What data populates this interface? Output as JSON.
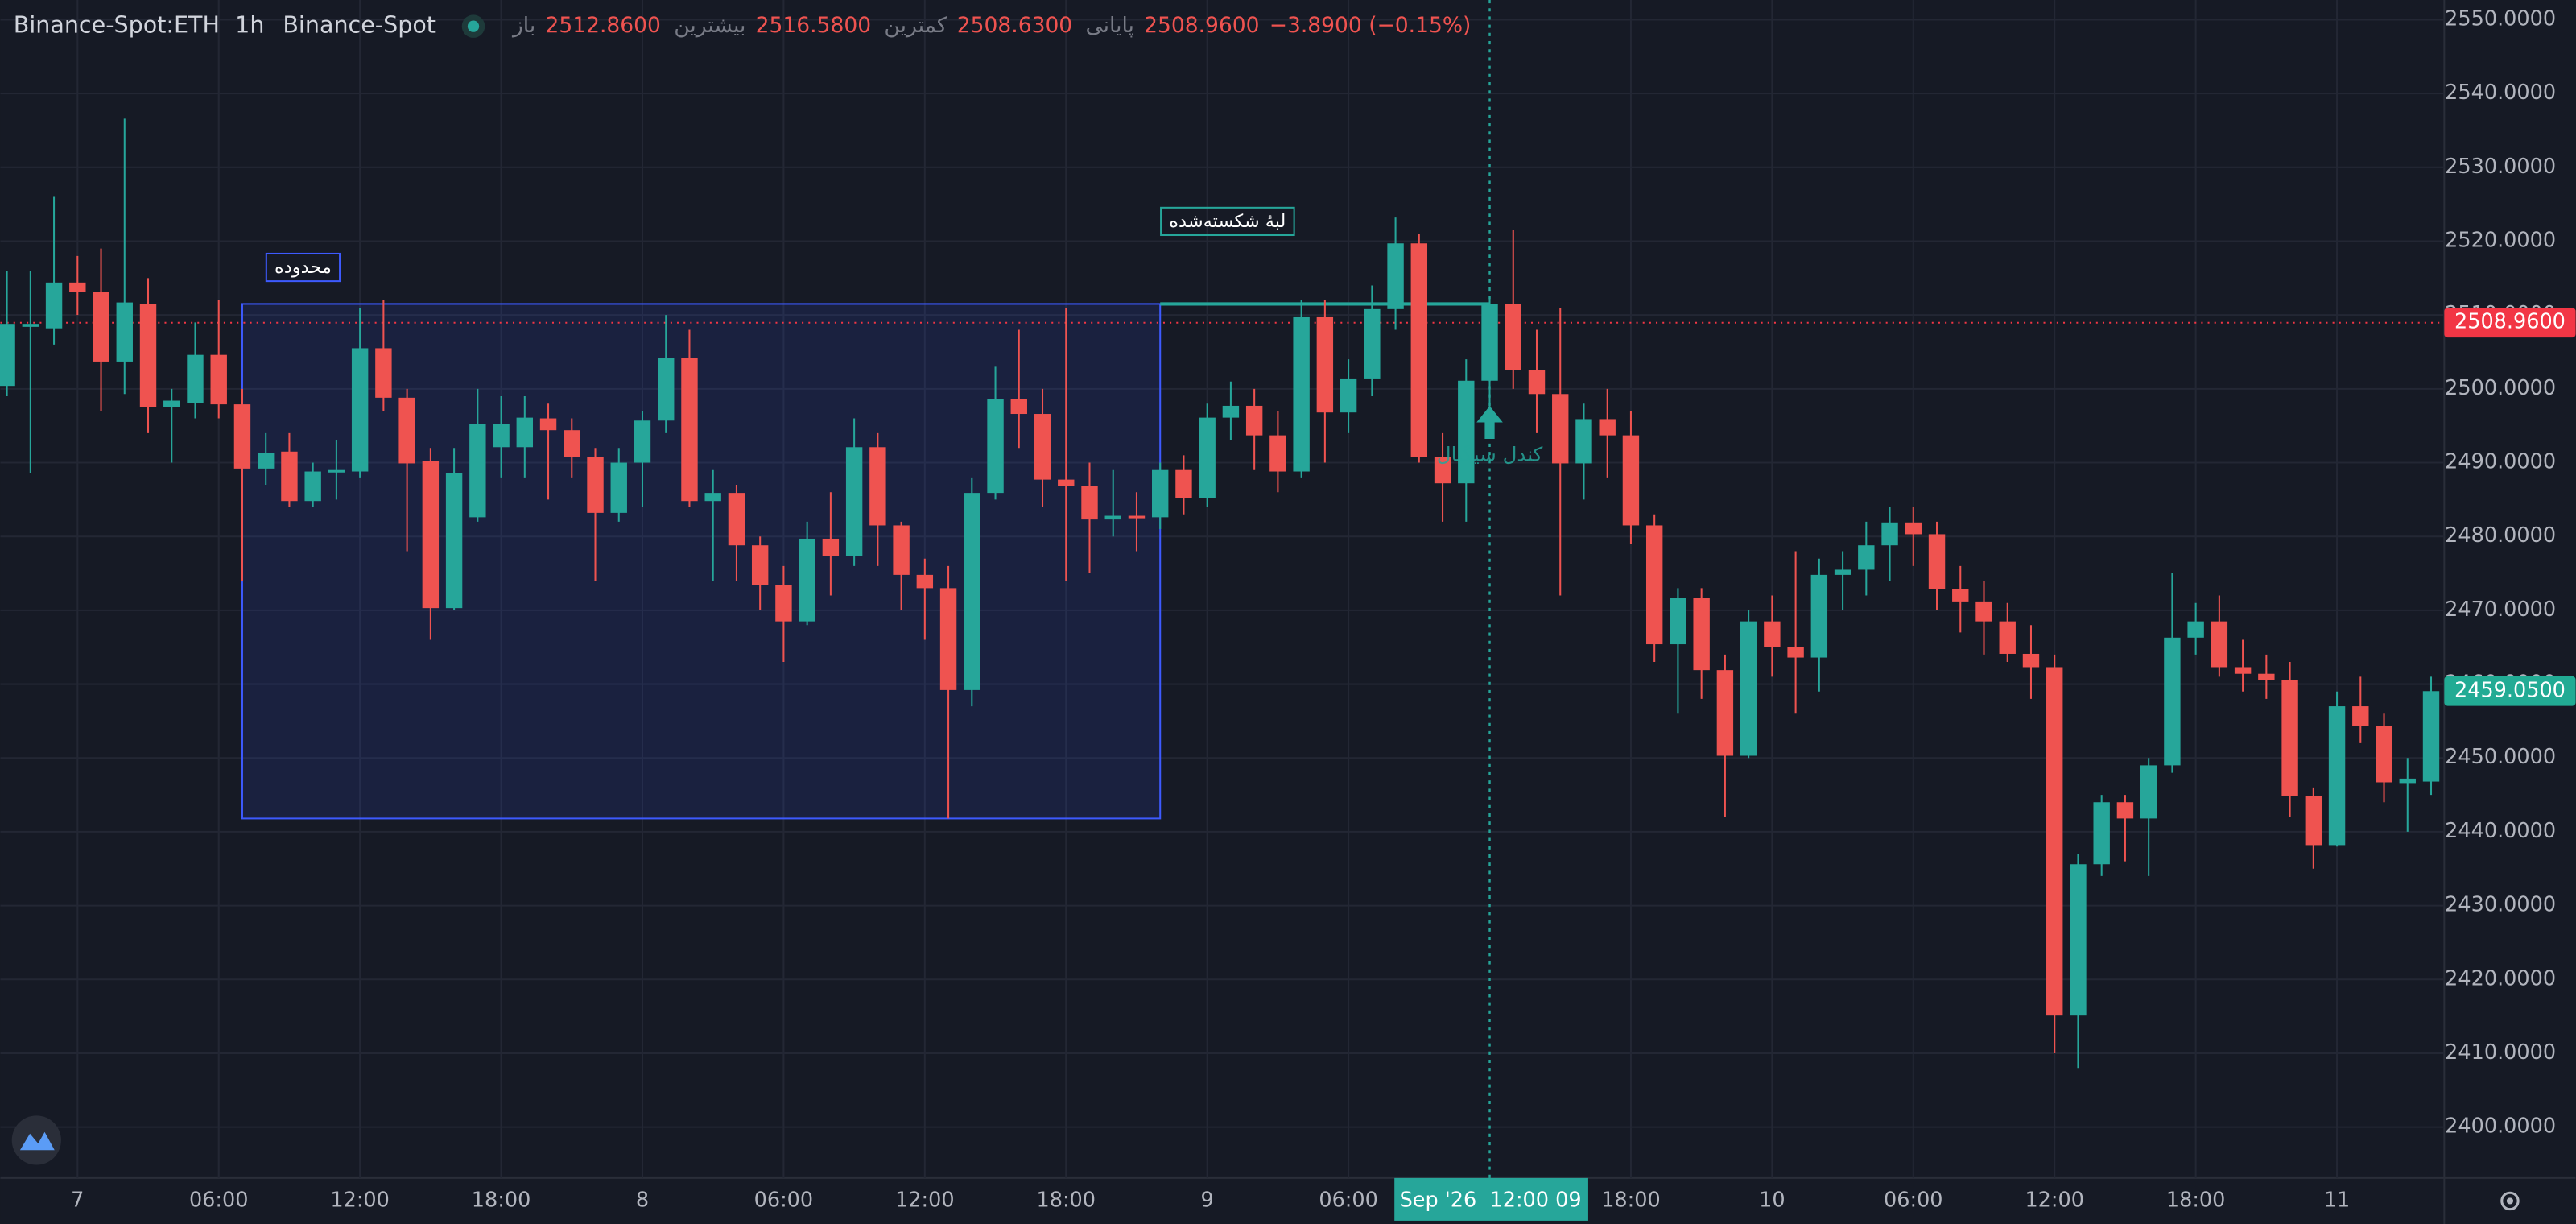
{
  "chart_data": {
    "type": "candlestick",
    "header": {
      "symbol": "Binance-Spot:ETH",
      "interval": "1h",
      "exchange": "Binance-Spot",
      "items": [
        {
          "label": "باز",
          "value": "2512.8600"
        },
        {
          "label": "بیشترین",
          "value": "2516.5800"
        },
        {
          "label": "کمترین",
          "value": "2508.6300"
        },
        {
          "label": "پایانی",
          "value": "2508.9600"
        }
      ],
      "change": "−3.8900 (−0.15%)"
    },
    "categories": [
      null,
      null,
      null,
      "7",
      null,
      null,
      null,
      null,
      null,
      "06:00",
      null,
      null,
      null,
      null,
      null,
      "12:00",
      null,
      null,
      null,
      null,
      null,
      "18:00",
      null,
      null,
      null,
      null,
      null,
      "8",
      null,
      null,
      null,
      null,
      null,
      "06:00",
      null,
      null,
      null,
      null,
      null,
      "12:00",
      null,
      null,
      null,
      null,
      null,
      "18:00",
      null,
      null,
      null,
      null,
      null,
      "9",
      null,
      null,
      null,
      null,
      null,
      "06:00",
      null,
      null,
      null,
      null,
      null,
      null,
      null,
      null,
      null,
      null,
      null,
      "18:00",
      null,
      null,
      null,
      null,
      null,
      "10",
      null,
      null,
      null,
      null,
      null,
      "06:00",
      null,
      null,
      null,
      null,
      null,
      "12:00",
      null,
      null,
      null,
      null,
      null,
      "18:00",
      null,
      null,
      null,
      null,
      null,
      "11",
      null,
      null,
      null,
      null
    ],
    "open": [
      2500.4,
      2508.4,
      2508.2,
      2514.4,
      2513.1,
      2503.7,
      2511.5,
      2497.5,
      2498.1,
      2504.6,
      2497.9,
      2489.2,
      2491.5,
      2484.8,
      2489,
      2488.8,
      2505.5,
      2498.8,
      2490.2,
      2470.3,
      2482.6,
      2492.1,
      2492.1,
      2496,
      2494.4,
      2490.8,
      2483.2,
      2490,
      2495.7,
      2504.2,
      2484.8,
      2485.9,
      2478.8,
      2473.4,
      2468.5,
      2479.7,
      2477.4,
      2492.1,
      2481.5,
      2474.8,
      2473,
      2459.2,
      2485.9,
      2498.6,
      2496.6,
      2487.7,
      2486.8,
      2482.3,
      2482.8,
      2482.6,
      2489,
      2485.2,
      2496.1,
      2497.7,
      2493.7,
      2488.8,
      2509.7,
      2496.8,
      2501.3,
      2510.8,
      2519.7,
      2490.8,
      2487.2,
      2501.1,
      2511.5,
      2502.6,
      2499.3,
      2489.9,
      2495.9,
      2493.7,
      2481.5,
      2465.4,
      2471.7,
      2461.9,
      2450.3,
      2468.5,
      2465,
      2463.6,
      2474.8,
      2475.5,
      2478.8,
      2481.9,
      2480.3,
      2472.9,
      2471.2,
      2468.5,
      2464.1,
      2462.3,
      2415.1,
      2435.6,
      2444,
      2441.8,
      2449,
      2466.3,
      2468.5,
      2462.3,
      2461.4,
      2460.5,
      2444.9,
      2438.2,
      2457,
      2454.3,
      2446.6,
      2446.8
    ],
    "high": [
      2516,
      2516,
      2526,
      2518,
      2519,
      2536.6,
      2515,
      2500,
      2509,
      2512,
      2500,
      2494,
      2494,
      2490,
      2493,
      2511,
      2512,
      2500,
      2492,
      2492,
      2500,
      2499,
      2499,
      2498,
      2496,
      2492,
      2492,
      2497,
      2510,
      2508,
      2489,
      2487,
      2480,
      2476,
      2482,
      2486,
      2496,
      2494,
      2482,
      2477,
      2476,
      2488,
      2503,
      2508,
      2500,
      2511,
      2490,
      2489,
      2486,
      2490,
      2491,
      2498,
      2501,
      2500,
      2497,
      2512,
      2512,
      2504,
      2514,
      2523.2,
      2521,
      2494,
      2504,
      2512.5,
      2521.5,
      2508,
      2511,
      2498,
      2500,
      2497,
      2483,
      2473,
      2473,
      2464,
      2470,
      2472,
      2478,
      2477,
      2478,
      2482,
      2484,
      2484,
      2482,
      2476,
      2474,
      2471,
      2468,
      2464,
      2437,
      2445,
      2445,
      2450,
      2475,
      2471,
      2472,
      2466,
      2464,
      2463,
      2446,
      2459,
      2461,
      2456,
      2450,
      2461
    ],
    "low": [
      2499,
      2488.6,
      2506,
      2510,
      2497,
      2499.3,
      2494,
      2490,
      2496,
      2496,
      2474,
      2487,
      2484,
      2484,
      2485,
      2488,
      2497,
      2478,
      2466,
      2470,
      2482,
      2488,
      2488,
      2485,
      2488,
      2474,
      2482,
      2484,
      2494,
      2484,
      2474,
      2474,
      2470,
      2463,
      2468,
      2472,
      2476,
      2476,
      2470,
      2466,
      2441.8,
      2457,
      2485,
      2492,
      2484,
      2474,
      2475,
      2480,
      2478,
      2481,
      2483,
      2484,
      2493,
      2489,
      2486,
      2488,
      2490,
      2494,
      2499,
      2508,
      2490,
      2482,
      2482,
      2496,
      2500,
      2494,
      2472,
      2485,
      2488,
      2479,
      2463,
      2456,
      2458,
      2442,
      2450,
      2461,
      2456,
      2459,
      2470,
      2472,
      2474,
      2476,
      2470,
      2467,
      2464,
      2463,
      2458,
      2410,
      2408,
      2434,
      2436,
      2434,
      2448,
      2464,
      2461,
      2459,
      2458,
      2442,
      2435,
      2438,
      2452,
      2444,
      2440,
      2445
    ],
    "close": [
      2508.8,
      2508.8,
      2514.4,
      2513.1,
      2503.7,
      2511.7,
      2497.5,
      2498.4,
      2504.6,
      2497.9,
      2489.2,
      2491.3,
      2484.8,
      2488.8,
      2489,
      2505.5,
      2498.8,
      2489.9,
      2470.3,
      2488.6,
      2495.2,
      2495.2,
      2496.1,
      2494.4,
      2490.8,
      2483.2,
      2490,
      2495.7,
      2504.2,
      2484.8,
      2485.9,
      2478.8,
      2473.4,
      2468.5,
      2479.7,
      2477.4,
      2492.1,
      2481.5,
      2474.8,
      2473,
      2459.2,
      2485.9,
      2498.6,
      2496.6,
      2487.7,
      2486.8,
      2482.3,
      2482.8,
      2482.6,
      2489,
      2485.2,
      2496.1,
      2497.7,
      2493.7,
      2488.8,
      2509.7,
      2496.8,
      2501.3,
      2510.8,
      2519.7,
      2490.8,
      2487.2,
      2501.1,
      2511.5,
      2502.6,
      2499.3,
      2489.9,
      2495.9,
      2493.7,
      2481.5,
      2465.4,
      2471.7,
      2461.9,
      2450.3,
      2468.5,
      2465,
      2463.6,
      2474.8,
      2475.5,
      2478.8,
      2481.9,
      2480.3,
      2472.9,
      2471.2,
      2468.5,
      2464.1,
      2462.3,
      2415.1,
      2435.6,
      2444,
      2441.8,
      2449,
      2466.3,
      2468.5,
      2462.3,
      2461.4,
      2460.5,
      2444.9,
      2438.2,
      2457,
      2454.3,
      2446.7,
      2447.2,
      2459.05
    ],
    "up_color": "#26a69a",
    "down_color": "#ef5350",
    "ylim": [
      2393.1,
      2552.67
    ],
    "yticks": [
      {
        "value": 2400,
        "label": "2400.0000"
      },
      {
        "value": 2410,
        "label": "2410.0000"
      },
      {
        "value": 2420,
        "label": "2420.0000"
      },
      {
        "value": 2430,
        "label": "2430.0000"
      },
      {
        "value": 2440,
        "label": "2440.0000"
      },
      {
        "value": 2450,
        "label": "2450.0000"
      },
      {
        "value": 2460,
        "label": "2460.0000"
      },
      {
        "value": 2470,
        "label": "2470.0000"
      },
      {
        "value": 2480,
        "label": "2480.0000"
      },
      {
        "value": 2490,
        "label": "2490.0000"
      },
      {
        "value": 2500,
        "label": "2500.0000"
      },
      {
        "value": 2510,
        "label": "2510.0000"
      },
      {
        "value": 2520,
        "label": "2520.0000"
      },
      {
        "value": 2530,
        "label": "2530.0000"
      },
      {
        "value": 2540,
        "label": "2540.0000"
      },
      {
        "value": 2550,
        "label": "2550.0000"
      }
    ],
    "grid": true,
    "price_lines": [
      {
        "value": 2508.96,
        "label": "2508.9600",
        "color": "#f23645",
        "line": true
      },
      {
        "value": 2459.05,
        "label": "2459.0500",
        "color": "#22ab94",
        "line": false
      }
    ],
    "crosshair": {
      "index": 63,
      "date": "Sep '26",
      "time": "12:00 09",
      "color": "#26a69a"
    },
    "zone": {
      "label": "محدوده",
      "start": 10,
      "end": 49,
      "top": 2511.5,
      "bottom": 2441.8,
      "color": "#3d5afe"
    },
    "edge": {
      "label": "لبهٔ شکسته‌شده",
      "start": 49,
      "end": 63,
      "value": 2511.5,
      "color": "#26a69a"
    },
    "signal": {
      "label": "کندل سیگنال",
      "index": 63,
      "value": 2491,
      "color": "#26a69a"
    }
  }
}
